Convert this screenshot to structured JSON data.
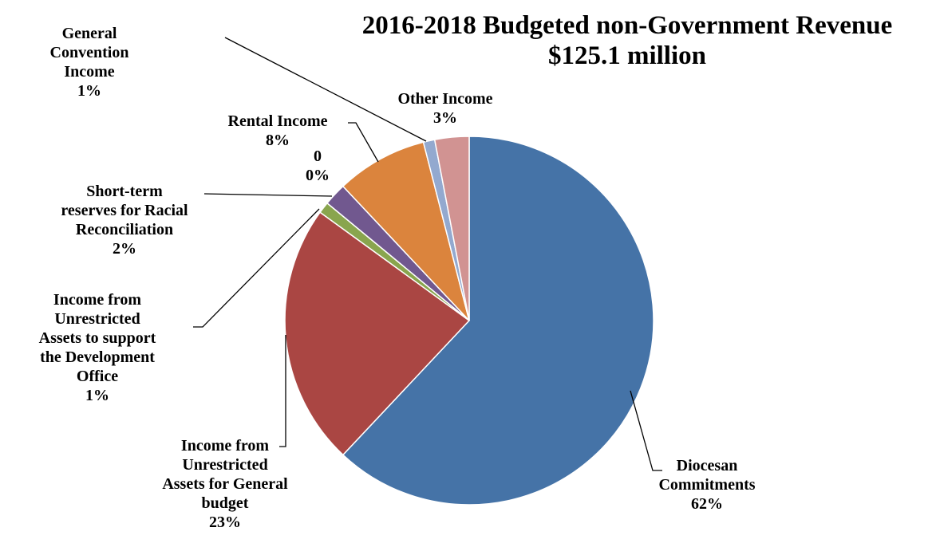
{
  "chart_data": {
    "type": "pie",
    "title": [
      "2016-2018 Budgeted non-Government Revenue",
      "$125.1 million"
    ],
    "start_angle_deg": 0,
    "direction": "clockwise",
    "slices": [
      {
        "name": "Diocesan Commitments",
        "value": 62,
        "label": "62%",
        "color": "#4573A7"
      },
      {
        "name": "Income from Unrestricted Assets for General budget",
        "value": 23,
        "label": "23%",
        "color": "#AA4643"
      },
      {
        "name": "Income from Unrestricted Assets to support the Development Office",
        "value": 1,
        "label": "1%",
        "color": "#89A54E"
      },
      {
        "name": "Short-term reserves for Racial Reconciliation",
        "value": 2,
        "label": "2%",
        "color": "#71588F"
      },
      {
        "name": "0",
        "value": 0,
        "label": "0%",
        "color": "#4198AF"
      },
      {
        "name": "Rental Income",
        "value": 8,
        "label": "8%",
        "color": "#DB843D"
      },
      {
        "name": "General Convention Income",
        "value": 1,
        "label": "1%",
        "color": "#93A9CF"
      },
      {
        "name": "Other Income",
        "value": 3,
        "label": "3%",
        "color": "#D19392"
      }
    ],
    "legend": "none"
  }
}
